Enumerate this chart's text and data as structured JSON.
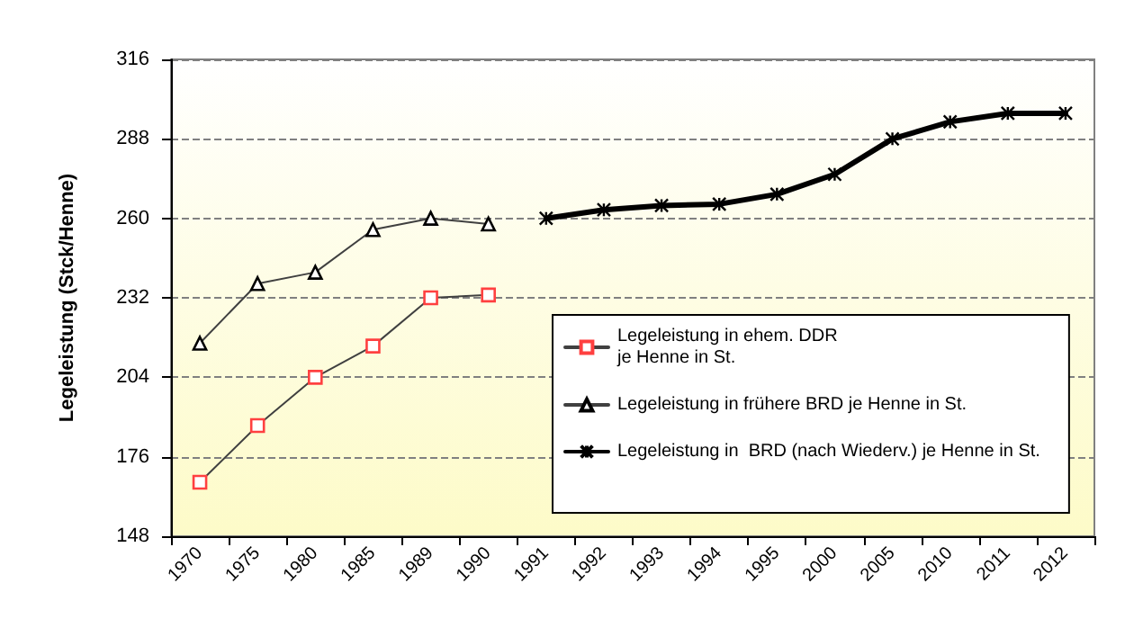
{
  "chart_data": {
    "type": "line",
    "ylabel": "Legeleistung (Stck/Henne)",
    "categories": [
      "1970",
      "1975",
      "1980",
      "1985",
      "1989",
      "1990",
      "1991",
      "1992",
      "1993",
      "1994",
      "1995",
      "2000",
      "2005",
      "2010",
      "2011",
      "2012"
    ],
    "series": [
      {
        "name": "Legeleistung in ehem. DDR\nje Henne in St.",
        "color": "#ff4040",
        "marker": "square",
        "values": [
          167,
          187,
          204,
          215,
          232,
          233,
          null,
          null,
          null,
          null,
          null,
          null,
          null,
          null,
          null,
          null
        ]
      },
      {
        "name": "Legeleistung in frühere BRD je Henne in St.",
        "color": "#000000",
        "marker": "triangle",
        "values": [
          216,
          237,
          241,
          256,
          260,
          258,
          null,
          null,
          null,
          null,
          null,
          null,
          null,
          null,
          null,
          null
        ]
      },
      {
        "name": "Legeleistung in  BRD (nach Wiederv.) je Henne in St.",
        "color": "#000000",
        "marker": "cross",
        "values": [
          null,
          null,
          null,
          null,
          null,
          null,
          260,
          263,
          264.5,
          265,
          268.5,
          275.5,
          288,
          294,
          297,
          297
        ]
      }
    ],
    "ylim": [
      148,
      316
    ],
    "yticks": [
      148,
      176,
      204,
      232,
      260,
      288,
      316
    ],
    "grid": "y",
    "legend": "right",
    "line_style": "solid"
  }
}
